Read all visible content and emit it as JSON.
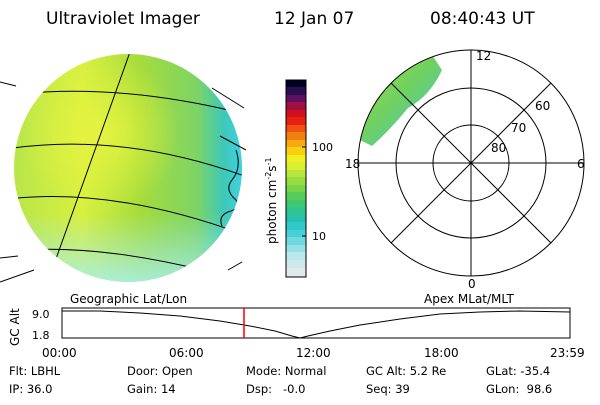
{
  "header": {
    "title": "Ultraviolet Imager",
    "date": "12 Jan 07",
    "time": "08:40:43 UT"
  },
  "colorbar": {
    "label": "photon cm",
    "label_sup1": "-2",
    "label_mid": "s",
    "label_sup2": "-1",
    "tick_100": "100",
    "tick_10": "10",
    "scale": "log"
  },
  "polar_plot": {
    "labels": {
      "top": "12",
      "bottom": "0",
      "left": "18",
      "right": "6",
      "lat_60": "60",
      "lat_70": "70",
      "lat_80": "80"
    }
  },
  "timeline": {
    "left_caption": "Geographic Lat/Lon",
    "right_caption": "Apex MLat/MLT",
    "axis_label": "GC Alt",
    "y_top": "9.0",
    "y_bottom": "1.8",
    "time_ticks": [
      "00:00",
      "06:00",
      "12:00",
      "18:00",
      "23:59"
    ],
    "marker_color": "#ff0000"
  },
  "info": {
    "flt": "Flt: LBHL",
    "ip": "IP: 36.0",
    "door": "Door: Open",
    "gain": "Gain: 14",
    "mode": "Mode: Normal",
    "dsp": "Dsp:   -0.0",
    "gcalt": "GC Alt: 5.2 Re",
    "seq": "Seq: 39",
    "glat": "GLat: -35.4",
    "glon": "GLon:  98.6"
  }
}
